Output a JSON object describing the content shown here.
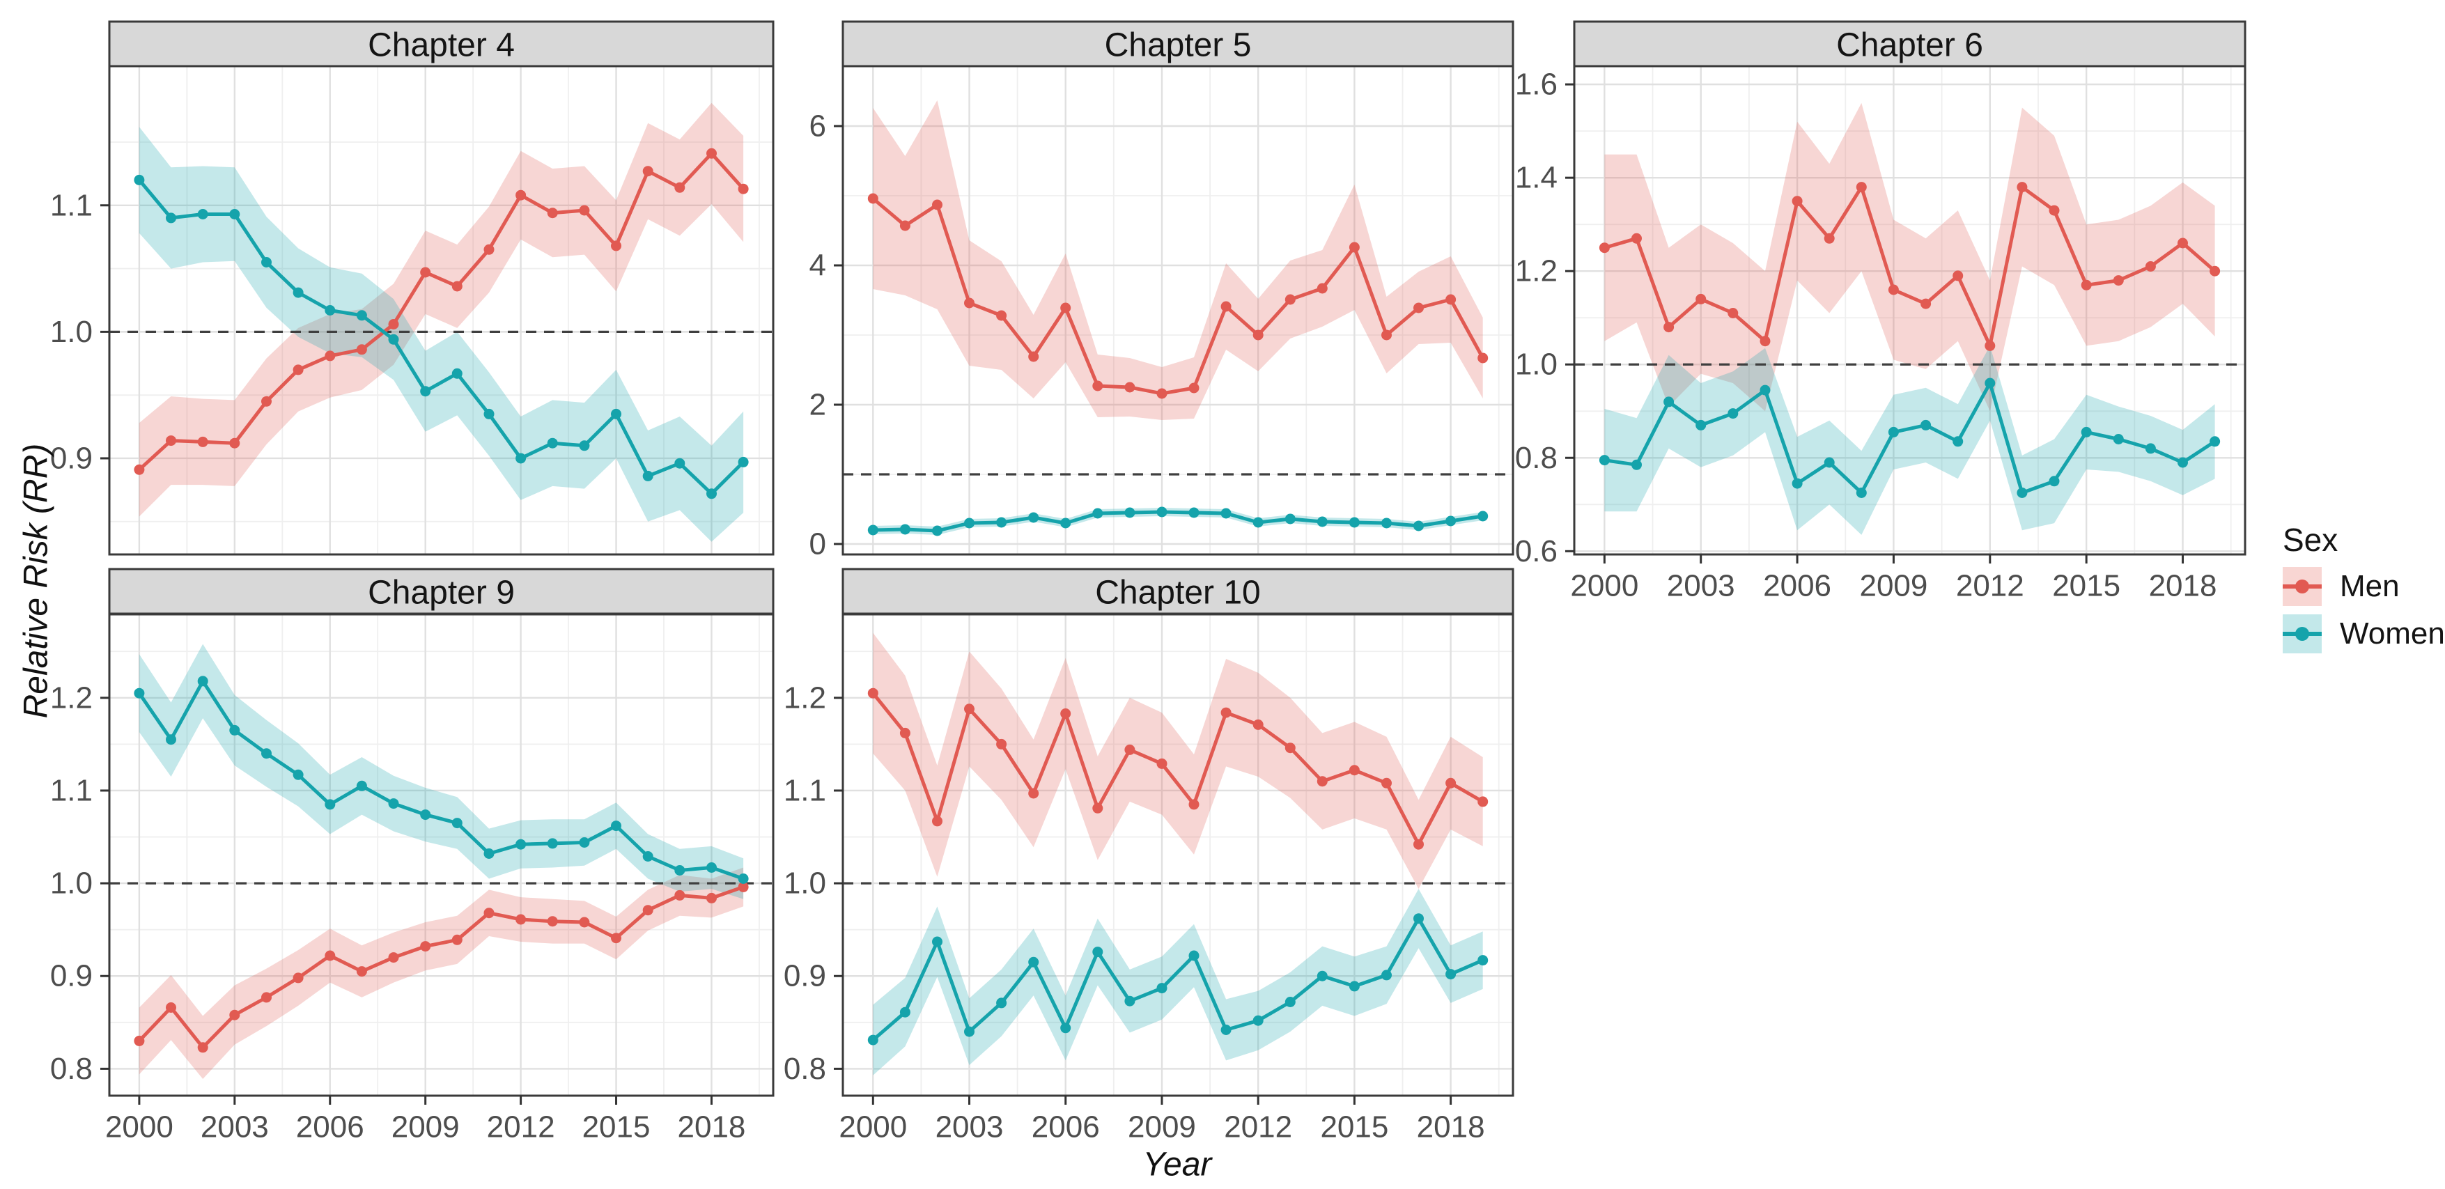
{
  "chart_data": {
    "type": "line",
    "title": "",
    "x_label": "Year",
    "y_label": "Relative Risk (RR)",
    "grid": "on",
    "legend": {
      "title": "Sex",
      "position": "right",
      "items": [
        {
          "label": "Men",
          "line_color": "#e15a52",
          "fill_color": "#f8d6d3"
        },
        {
          "label": "Women",
          "line_color": "#15a3ab",
          "fill_color": "#c3e8ea"
        }
      ]
    },
    "reference_line_y": 1.0,
    "years": [
      2000,
      2001,
      2002,
      2003,
      2004,
      2005,
      2006,
      2007,
      2008,
      2009,
      2010,
      2011,
      2012,
      2013,
      2014,
      2015,
      2016,
      2017,
      2018,
      2019
    ],
    "x_ticks": {
      "values": [
        2000,
        2003,
        2006,
        2009,
        2012,
        2015,
        2018
      ],
      "labels": [
        "2000",
        "2003",
        "2006",
        "2009",
        "2012",
        "2015",
        "2018"
      ]
    },
    "xlim": [
      1999.06,
      2019.94
    ],
    "facets": [
      {
        "title": "Chapter 4",
        "show_x_axis": false,
        "ylim": [
          0.824,
          1.21
        ],
        "y_ticks": [
          0.9,
          1.0,
          1.1
        ],
        "y_tick_labels": [
          "0.9",
          "1.0",
          "1.1"
        ],
        "series": [
          {
            "name": "Men",
            "values": [
              0.891,
              0.914,
              0.913,
              0.912,
              0.945,
              0.97,
              0.981,
              0.986,
              1.006,
              1.047,
              1.036,
              1.065,
              1.108,
              1.094,
              1.096,
              1.068,
              1.127,
              1.114,
              1.141,
              1.113
            ],
            "ci_halfwidth": [
              0.037,
              0.035,
              0.034,
              0.034,
              0.034,
              0.033,
              0.033,
              0.032,
              0.032,
              0.033,
              0.033,
              0.034,
              0.035,
              0.035,
              0.035,
              0.036,
              0.038,
              0.038,
              0.04,
              0.042
            ]
          },
          {
            "name": "Women",
            "values": [
              1.12,
              1.09,
              1.093,
              1.093,
              1.055,
              1.031,
              1.017,
              1.013,
              0.994,
              0.953,
              0.967,
              0.935,
              0.9,
              0.912,
              0.91,
              0.935,
              0.886,
              0.896,
              0.872,
              0.897
            ],
            "ci_halfwidth": [
              0.042,
              0.04,
              0.038,
              0.037,
              0.036,
              0.035,
              0.034,
              0.033,
              0.032,
              0.032,
              0.033,
              0.033,
              0.033,
              0.034,
              0.034,
              0.035,
              0.036,
              0.037,
              0.038,
              0.04
            ]
          }
        ]
      },
      {
        "title": "Chapter 5",
        "show_x_axis": false,
        "ylim": [
          -0.15,
          6.86
        ],
        "y_ticks": [
          0,
          2,
          4,
          6
        ],
        "y_tick_labels": [
          "0",
          "2",
          "4",
          "6"
        ],
        "series": [
          {
            "name": "Men",
            "values": [
              4.96,
              4.57,
              4.87,
              3.46,
              3.28,
              2.69,
              3.39,
              2.27,
              2.25,
              2.16,
              2.24,
              3.41,
              3.0,
              3.51,
              3.67,
              4.26,
              3.0,
              3.39,
              3.51,
              2.67
            ],
            "ci_halfwidth": [
              1.3,
              1.0,
              1.5,
              0.9,
              0.78,
              0.6,
              0.78,
              0.45,
              0.42,
              0.38,
              0.44,
              0.62,
              0.52,
              0.56,
              0.55,
              0.9,
              0.55,
              0.52,
              0.62,
              0.58
            ]
          },
          {
            "name": "Women",
            "values": [
              0.2,
              0.21,
              0.19,
              0.3,
              0.31,
              0.38,
              0.3,
              0.44,
              0.45,
              0.46,
              0.45,
              0.44,
              0.31,
              0.36,
              0.32,
              0.31,
              0.3,
              0.26,
              0.33,
              0.4
            ],
            "ci_halfwidth": [
              0.06,
              0.06,
              0.06,
              0.06,
              0.06,
              0.06,
              0.06,
              0.06,
              0.06,
              0.06,
              0.06,
              0.06,
              0.06,
              0.06,
              0.06,
              0.06,
              0.06,
              0.06,
              0.06,
              0.06
            ]
          }
        ]
      },
      {
        "title": "Chapter 6",
        "show_x_axis": true,
        "ylim": [
          0.593,
          1.639
        ],
        "y_ticks": [
          0.6,
          0.8,
          1.0,
          1.2,
          1.4,
          1.6
        ],
        "y_tick_labels": [
          "0.6",
          "0.8",
          "1.0",
          "1.2",
          "1.4",
          "1.6"
        ],
        "series": [
          {
            "name": "Men",
            "values": [
              1.25,
              1.27,
              1.08,
              1.14,
              1.11,
              1.05,
              1.35,
              1.27,
              1.38,
              1.16,
              1.13,
              1.19,
              1.04,
              1.38,
              1.33,
              1.17,
              1.18,
              1.21,
              1.26,
              1.2
            ],
            "ci_halfwidth": [
              0.2,
              0.18,
              0.17,
              0.16,
              0.15,
              0.15,
              0.17,
              0.16,
              0.18,
              0.15,
              0.14,
              0.14,
              0.14,
              0.17,
              0.16,
              0.13,
              0.13,
              0.13,
              0.13,
              0.14
            ]
          },
          {
            "name": "Women",
            "values": [
              0.795,
              0.785,
              0.92,
              0.87,
              0.895,
              0.945,
              0.745,
              0.79,
              0.725,
              0.855,
              0.87,
              0.835,
              0.96,
              0.725,
              0.75,
              0.855,
              0.84,
              0.82,
              0.79,
              0.835
            ],
            "ci_halfwidth": [
              0.11,
              0.1,
              0.1,
              0.09,
              0.09,
              0.09,
              0.1,
              0.09,
              0.09,
              0.08,
              0.08,
              0.08,
              0.08,
              0.08,
              0.09,
              0.08,
              0.07,
              0.07,
              0.07,
              0.08
            ]
          }
        ]
      },
      {
        "title": "Chapter 9",
        "show_x_axis": true,
        "ylim": [
          0.771,
          1.29
        ],
        "y_ticks": [
          0.8,
          0.9,
          1.0,
          1.1,
          1.2
        ],
        "y_tick_labels": [
          "0.8",
          "0.9",
          "1.0",
          "1.1",
          "1.2"
        ],
        "series": [
          {
            "name": "Men",
            "values": [
              0.83,
              0.866,
              0.823,
              0.858,
              0.877,
              0.898,
              0.922,
              0.905,
              0.92,
              0.932,
              0.939,
              0.968,
              0.961,
              0.959,
              0.958,
              0.941,
              0.971,
              0.987,
              0.984,
              0.996
            ],
            "ci_halfwidth": [
              0.036,
              0.035,
              0.034,
              0.032,
              0.031,
              0.03,
              0.029,
              0.028,
              0.027,
              0.026,
              0.026,
              0.025,
              0.024,
              0.024,
              0.023,
              0.023,
              0.022,
              0.022,
              0.021,
              0.021
            ]
          },
          {
            "name": "Women",
            "values": [
              1.205,
              1.155,
              1.218,
              1.165,
              1.14,
              1.117,
              1.085,
              1.105,
              1.086,
              1.074,
              1.065,
              1.032,
              1.042,
              1.043,
              1.044,
              1.062,
              1.029,
              1.014,
              1.017,
              1.005
            ],
            "ci_halfwidth": [
              0.042,
              0.04,
              0.04,
              0.038,
              0.036,
              0.034,
              0.032,
              0.031,
              0.03,
              0.029,
              0.028,
              0.027,
              0.026,
              0.026,
              0.025,
              0.025,
              0.024,
              0.023,
              0.023,
              0.022
            ]
          }
        ]
      },
      {
        "title": "Chapter 10",
        "show_x_axis": true,
        "ylim": [
          0.771,
          1.29
        ],
        "y_ticks": [
          0.8,
          0.9,
          1.0,
          1.1,
          1.2
        ],
        "y_tick_labels": [
          "0.8",
          "0.9",
          "1.0",
          "1.1",
          "1.2"
        ],
        "series": [
          {
            "name": "Men",
            "values": [
              1.205,
              1.162,
              1.067,
              1.188,
              1.15,
              1.097,
              1.183,
              1.081,
              1.144,
              1.129,
              1.085,
              1.184,
              1.171,
              1.146,
              1.11,
              1.122,
              1.108,
              1.042,
              1.108,
              1.088
            ],
            "ci_halfwidth": [
              0.065,
              0.062,
              0.06,
              0.062,
              0.06,
              0.058,
              0.06,
              0.056,
              0.056,
              0.055,
              0.054,
              0.058,
              0.056,
              0.054,
              0.052,
              0.052,
              0.05,
              0.048,
              0.05,
              0.048
            ]
          },
          {
            "name": "Women",
            "values": [
              0.831,
              0.861,
              0.937,
              0.84,
              0.871,
              0.915,
              0.844,
              0.926,
              0.873,
              0.887,
              0.922,
              0.842,
              0.852,
              0.872,
              0.9,
              0.889,
              0.901,
              0.962,
              0.902,
              0.917
            ],
            "ci_halfwidth": [
              0.038,
              0.037,
              0.038,
              0.036,
              0.036,
              0.036,
              0.035,
              0.036,
              0.034,
              0.034,
              0.034,
              0.033,
              0.032,
              0.032,
              0.032,
              0.032,
              0.031,
              0.032,
              0.031,
              0.031
            ]
          }
        ]
      }
    ]
  }
}
